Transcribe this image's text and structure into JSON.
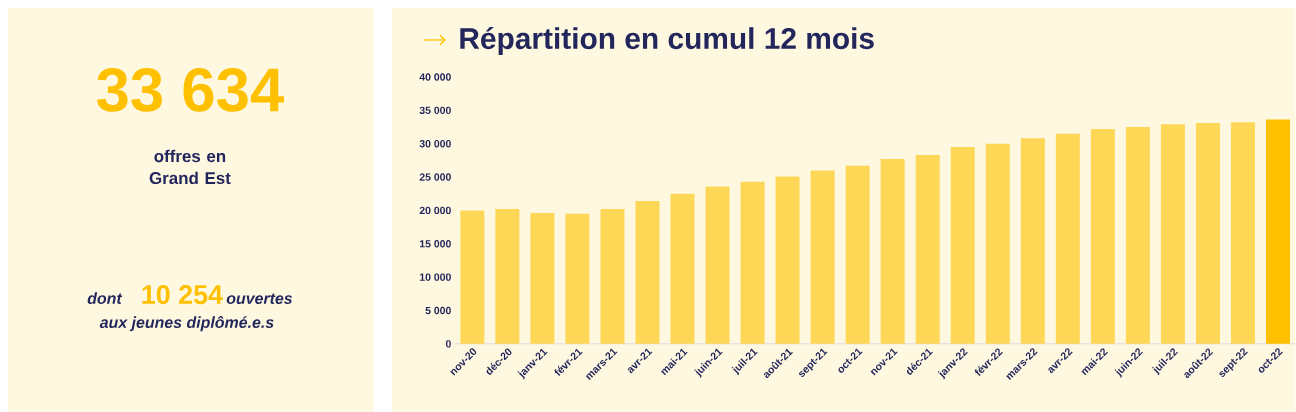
{
  "chart_data": [
    {
      "type": "other",
      "title": "33 634",
      "subtitle": "offres en Grand Est",
      "annotations": [
        "dont",
        "10 254",
        "ouvertes",
        "aux jeunes diplômé.e.s"
      ]
    },
    {
      "type": "bar",
      "title": "Répartition en cumul 12 mois",
      "categories": [
        "nov-20",
        "déc-20",
        "janv-21",
        "févr-21",
        "mars-21",
        "avr-21",
        "mai-21",
        "juin-21",
        "juil-21",
        "août-21",
        "sept-21",
        "oct-21",
        "nov-21",
        "déc-21",
        "janv-22",
        "févr-22",
        "mars-22",
        "avr-22",
        "mai-22",
        "juin-22",
        "juil-22",
        "août-22",
        "sept-22",
        "oct-22"
      ],
      "values": [
        20000,
        20200,
        19600,
        19500,
        20200,
        21400,
        22500,
        23600,
        24300,
        25100,
        26000,
        26700,
        27700,
        28300,
        29500,
        30000,
        30800,
        31500,
        32200,
        32500,
        32900,
        33100,
        33200,
        33634
      ],
      "colors": [
        "#fed757",
        "#fed757",
        "#fed757",
        "#fed757",
        "#fed757",
        "#fed757",
        "#fed757",
        "#fed757",
        "#fed757",
        "#fed757",
        "#fed757",
        "#fed757",
        "#fed757",
        "#fed757",
        "#fed757",
        "#fed757",
        "#fed757",
        "#fed757",
        "#fed757",
        "#fed757",
        "#fed757",
        "#fed757",
        "#fed757",
        "#ffc000"
      ],
      "ylim": [
        0,
        40000
      ],
      "yticks": [
        {
          "value": 0,
          "label": "0"
        },
        {
          "value": 5000,
          "label": "5 000"
        },
        {
          "value": 10000,
          "label": "10 000"
        },
        {
          "value": 15000,
          "label": "15 000"
        },
        {
          "value": 20000,
          "label": "20 000"
        },
        {
          "value": 25000,
          "label": "25 000"
        },
        {
          "value": 30000,
          "label": "30 000"
        },
        {
          "value": 35000,
          "label": "35 000"
        },
        {
          "value": 40000,
          "label": "40 000"
        }
      ]
    }
  ]
}
